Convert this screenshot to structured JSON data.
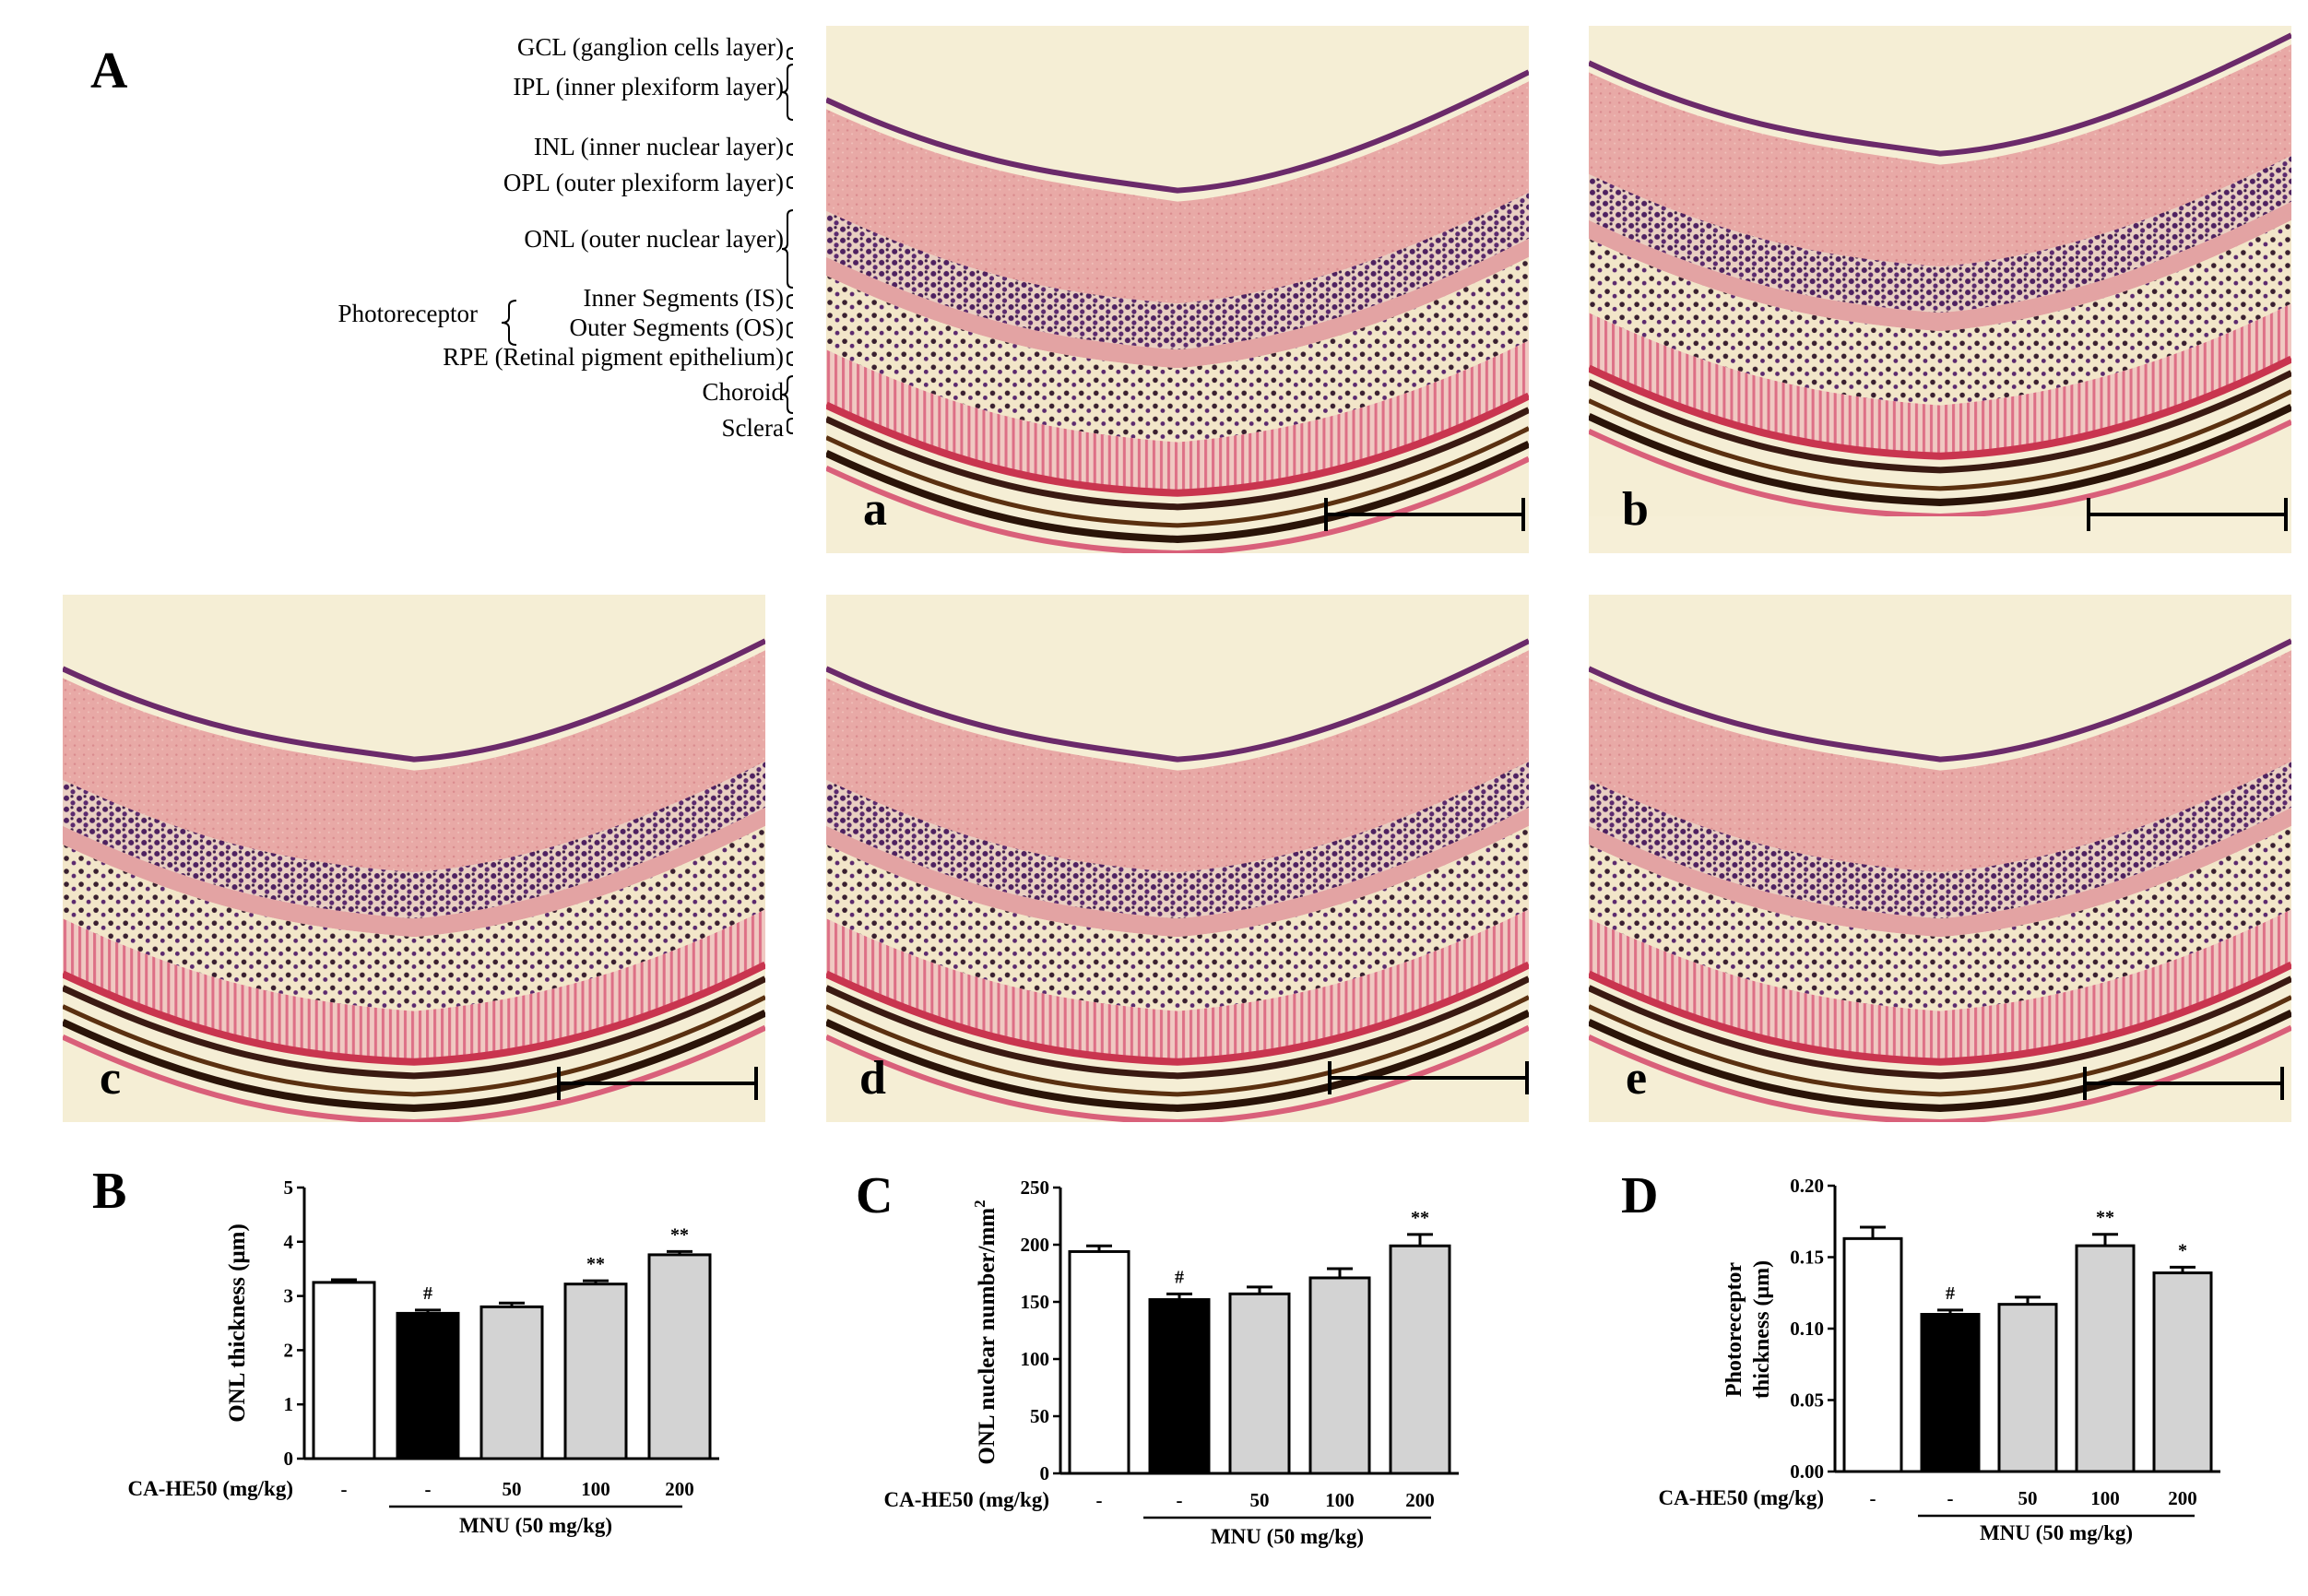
{
  "panel_labels": {
    "A": "A",
    "B": "B",
    "C": "C",
    "D": "D"
  },
  "micrographs": [
    {
      "label": "a"
    },
    {
      "label": "b"
    },
    {
      "label": "c"
    },
    {
      "label": "d"
    },
    {
      "label": "e"
    }
  ],
  "layer_labels": [
    "GCL (ganglion cells layer)",
    "IPL (inner plexiform layer)",
    "INL (inner nuclear layer)",
    "OPL (outer plexiform layer)",
    "ONL (outer nuclear layer)",
    "Inner Segments (IS)",
    "Outer Segments (OS)",
    "RPE (Retinal pigment epithelium)",
    "Choroid",
    "Sclera"
  ],
  "photoreceptor_label": "Photoreceptor",
  "colors": {
    "control": "#ffffff",
    "mnu": "#000000",
    "treated": "#d3d3d3",
    "stain_pink": "#d9607a",
    "stain_purple": "#5b2a6e"
  },
  "chart_data": [
    {
      "type": "bar",
      "panel": "B",
      "ylabel": "ONL thickness (μm)",
      "ylim": [
        0,
        5
      ],
      "yticks": [
        "0",
        "1",
        "2",
        "3",
        "4",
        "5"
      ],
      "categories": [
        "-",
        "-",
        "50",
        "100",
        "200"
      ],
      "values": [
        3.25,
        2.68,
        2.8,
        3.22,
        3.76
      ],
      "errors": [
        0.05,
        0.06,
        0.07,
        0.06,
        0.06
      ],
      "significance": [
        "",
        "#",
        "",
        "**",
        "**"
      ],
      "fills": [
        "#ffffff",
        "#000000",
        "#d3d3d3",
        "#d3d3d3",
        "#d3d3d3"
      ],
      "row_label": "CA-HE50 (mg/kg)",
      "group_label": "MNU (50 mg/kg)"
    },
    {
      "type": "bar",
      "panel": "C",
      "ylabel": "ONL nuclear number/mm",
      "ylabel_sup": "2",
      "ylim": [
        0,
        250
      ],
      "yticks": [
        "0",
        "50",
        "100",
        "150",
        "200",
        "250"
      ],
      "categories": [
        "-",
        "-",
        "50",
        "100",
        "200"
      ],
      "values": [
        194,
        152,
        157,
        171,
        199
      ],
      "errors": [
        5,
        5,
        6,
        8,
        10
      ],
      "significance": [
        "",
        "#",
        "",
        "",
        "**"
      ],
      "fills": [
        "#ffffff",
        "#000000",
        "#d3d3d3",
        "#d3d3d3",
        "#d3d3d3"
      ],
      "row_label": "CA-HE50 (mg/kg)",
      "group_label": "MNU (50 mg/kg)"
    },
    {
      "type": "bar",
      "panel": "D",
      "ylabel": "Photoreceptor",
      "ylabel2": "thickness (μm)",
      "ylim": [
        0,
        0.2
      ],
      "yticks": [
        "0.00",
        "0.05",
        "0.10",
        "0.15",
        "0.20"
      ],
      "categories": [
        "-",
        "-",
        "50",
        "100",
        "200"
      ],
      "values": [
        0.163,
        0.11,
        0.117,
        0.158,
        0.139
      ],
      "errors": [
        0.008,
        0.003,
        0.005,
        0.008,
        0.004
      ],
      "significance": [
        "",
        "#",
        "",
        "**",
        "*"
      ],
      "fills": [
        "#ffffff",
        "#000000",
        "#d3d3d3",
        "#d3d3d3",
        "#d3d3d3"
      ],
      "row_label": "CA-HE50 (mg/kg)",
      "group_label": "MNU (50 mg/kg)"
    }
  ]
}
